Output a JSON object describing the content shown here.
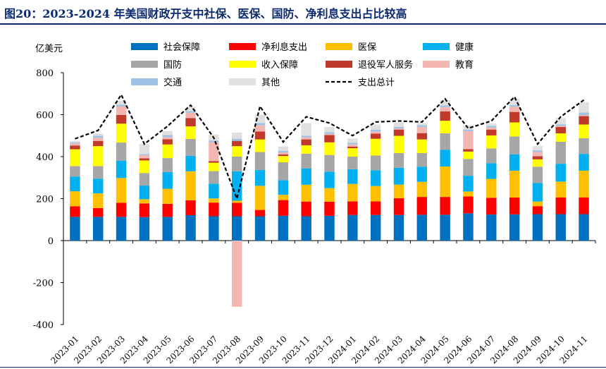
{
  "figure": {
    "title": "图20：2023-2024 年美国财政开支中社保、医保、国防、净利息支出占比较高"
  },
  "chart_data": {
    "type": "bar",
    "stacked": true,
    "ylabel": "亿美元",
    "ylim": [
      -400,
      800
    ],
    "yticks": [
      -400,
      -200,
      0,
      200,
      400,
      600,
      800
    ],
    "categories": [
      "2023-01",
      "2023-02",
      "2023-03",
      "2023-04",
      "2023-05",
      "2023-06",
      "2023-07",
      "2023-08",
      "2023-09",
      "2023-10",
      "2023-11",
      "2023-12",
      "2024-01",
      "2024-02",
      "2024-03",
      "2024-04",
      "2024-05",
      "2024-06",
      "2024-07",
      "2024-08",
      "2024-09",
      "2024-10",
      "2024-11"
    ],
    "series": [
      {
        "name": "社会保障",
        "color": "#0070c0",
        "values": [
          113,
          113,
          113,
          112,
          113,
          121,
          116,
          116,
          116,
          118,
          116,
          118,
          122,
          122,
          122,
          123,
          123,
          130,
          124,
          125,
          126,
          126,
          126
        ]
      },
      {
        "name": "净利息支出",
        "color": "#ff0000",
        "values": [
          50,
          42,
          67,
          65,
          62,
          71,
          65,
          64,
          30,
          75,
          70,
          67,
          65,
          65,
          80,
          85,
          85,
          80,
          80,
          80,
          38,
          80,
          80
        ]
      },
      {
        "name": "医保",
        "color": "#ffc000",
        "values": [
          72,
          70,
          118,
          20,
          72,
          138,
          20,
          10,
          115,
          25,
          80,
          65,
          83,
          73,
          65,
          72,
          145,
          24,
          90,
          128,
          22,
          75,
          127
        ]
      },
      {
        "name": "健康",
        "color": "#00b0f0",
        "values": [
          70,
          70,
          83,
          65,
          80,
          74,
          70,
          140,
          75,
          70,
          78,
          78,
          70,
          75,
          80,
          72,
          80,
          75,
          75,
          78,
          88,
          85,
          80
        ]
      },
      {
        "name": "国防",
        "color": "#a6a6a6",
        "values": [
          50,
          60,
          86,
          60,
          66,
          80,
          60,
          70,
          86,
          85,
          70,
          80,
          60,
          70,
          70,
          65,
          78,
          80,
          70,
          85,
          78,
          105,
          75
        ]
      },
      {
        "name": "收入保障",
        "color": "#ffff00",
        "values": [
          80,
          95,
          90,
          60,
          65,
          60,
          40,
          50,
          60,
          30,
          40,
          60,
          40,
          80,
          82,
          65,
          60,
          35,
          62,
          67,
          35,
          40,
          65
        ]
      },
      {
        "name": "退役军人服务",
        "color": "#c0392b",
        "values": [
          18,
          25,
          42,
          10,
          25,
          40,
          8,
          25,
          38,
          7,
          28,
          35,
          8,
          25,
          30,
          30,
          45,
          12,
          28,
          50,
          15,
          30,
          40
        ]
      },
      {
        "name": "教育",
        "color": "#f4b6b0",
        "values": [
          10,
          15,
          40,
          15,
          10,
          25,
          90,
          -315,
          30,
          10,
          10,
          5,
          10,
          10,
          5,
          30,
          20,
          85,
          10,
          25,
          20,
          5,
          5
        ]
      },
      {
        "name": "交通",
        "color": "#9dc3e6",
        "values": [
          5,
          10,
          8,
          5,
          10,
          8,
          8,
          10,
          10,
          8,
          8,
          8,
          8,
          8,
          8,
          8,
          8,
          8,
          8,
          8,
          8,
          8,
          12
        ]
      },
      {
        "name": "其他",
        "color": "#e0e0e0",
        "values": [
          7,
          10,
          20,
          48,
          18,
          20,
          28,
          30,
          40,
          20,
          60,
          25,
          20,
          25,
          20,
          10,
          25,
          20,
          12,
          30,
          20,
          30,
          50
        ]
      }
    ],
    "total": {
      "name": "支出总计",
      "color": "#000000",
      "values": [
        485,
        525,
        695,
        460,
        545,
        645,
        490,
        200,
        640,
        470,
        590,
        560,
        500,
        565,
        570,
        565,
        675,
        535,
        570,
        685,
        460,
        590,
        670
      ]
    },
    "legend_position": "top"
  }
}
